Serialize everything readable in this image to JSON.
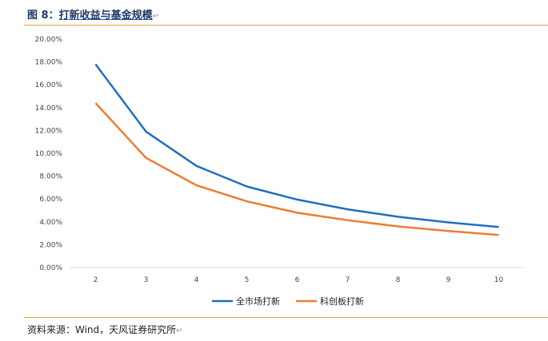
{
  "figure": {
    "label": "图 8：",
    "title": "打新收益与基金规模",
    "source": "资料来源：Wind，天风证券研究所"
  },
  "chart_data": {
    "type": "line",
    "title": "",
    "xlabel": "",
    "ylabel": "",
    "x": [
      2,
      3,
      4,
      5,
      6,
      7,
      8,
      9,
      10
    ],
    "ylim": [
      0,
      20
    ],
    "yticks": [
      "0.00%",
      "2.00%",
      "4.00%",
      "6.00%",
      "8.00%",
      "10.00%",
      "12.00%",
      "14.00%",
      "16.00%",
      "18.00%",
      "20.00%"
    ],
    "xticks": [
      "2",
      "3",
      "4",
      "5",
      "6",
      "7",
      "8",
      "9",
      "10"
    ],
    "grid": false,
    "legend": "bottom",
    "series": [
      {
        "name": "全市场打新",
        "color": "#1f6fbf",
        "values": [
          17.8,
          11.9,
          8.9,
          7.1,
          5.95,
          5.1,
          4.45,
          3.95,
          3.55
        ]
      },
      {
        "name": "科创板打新",
        "color": "#ed7d31",
        "values": [
          14.4,
          9.6,
          7.2,
          5.8,
          4.8,
          4.15,
          3.6,
          3.2,
          2.85
        ]
      }
    ]
  }
}
